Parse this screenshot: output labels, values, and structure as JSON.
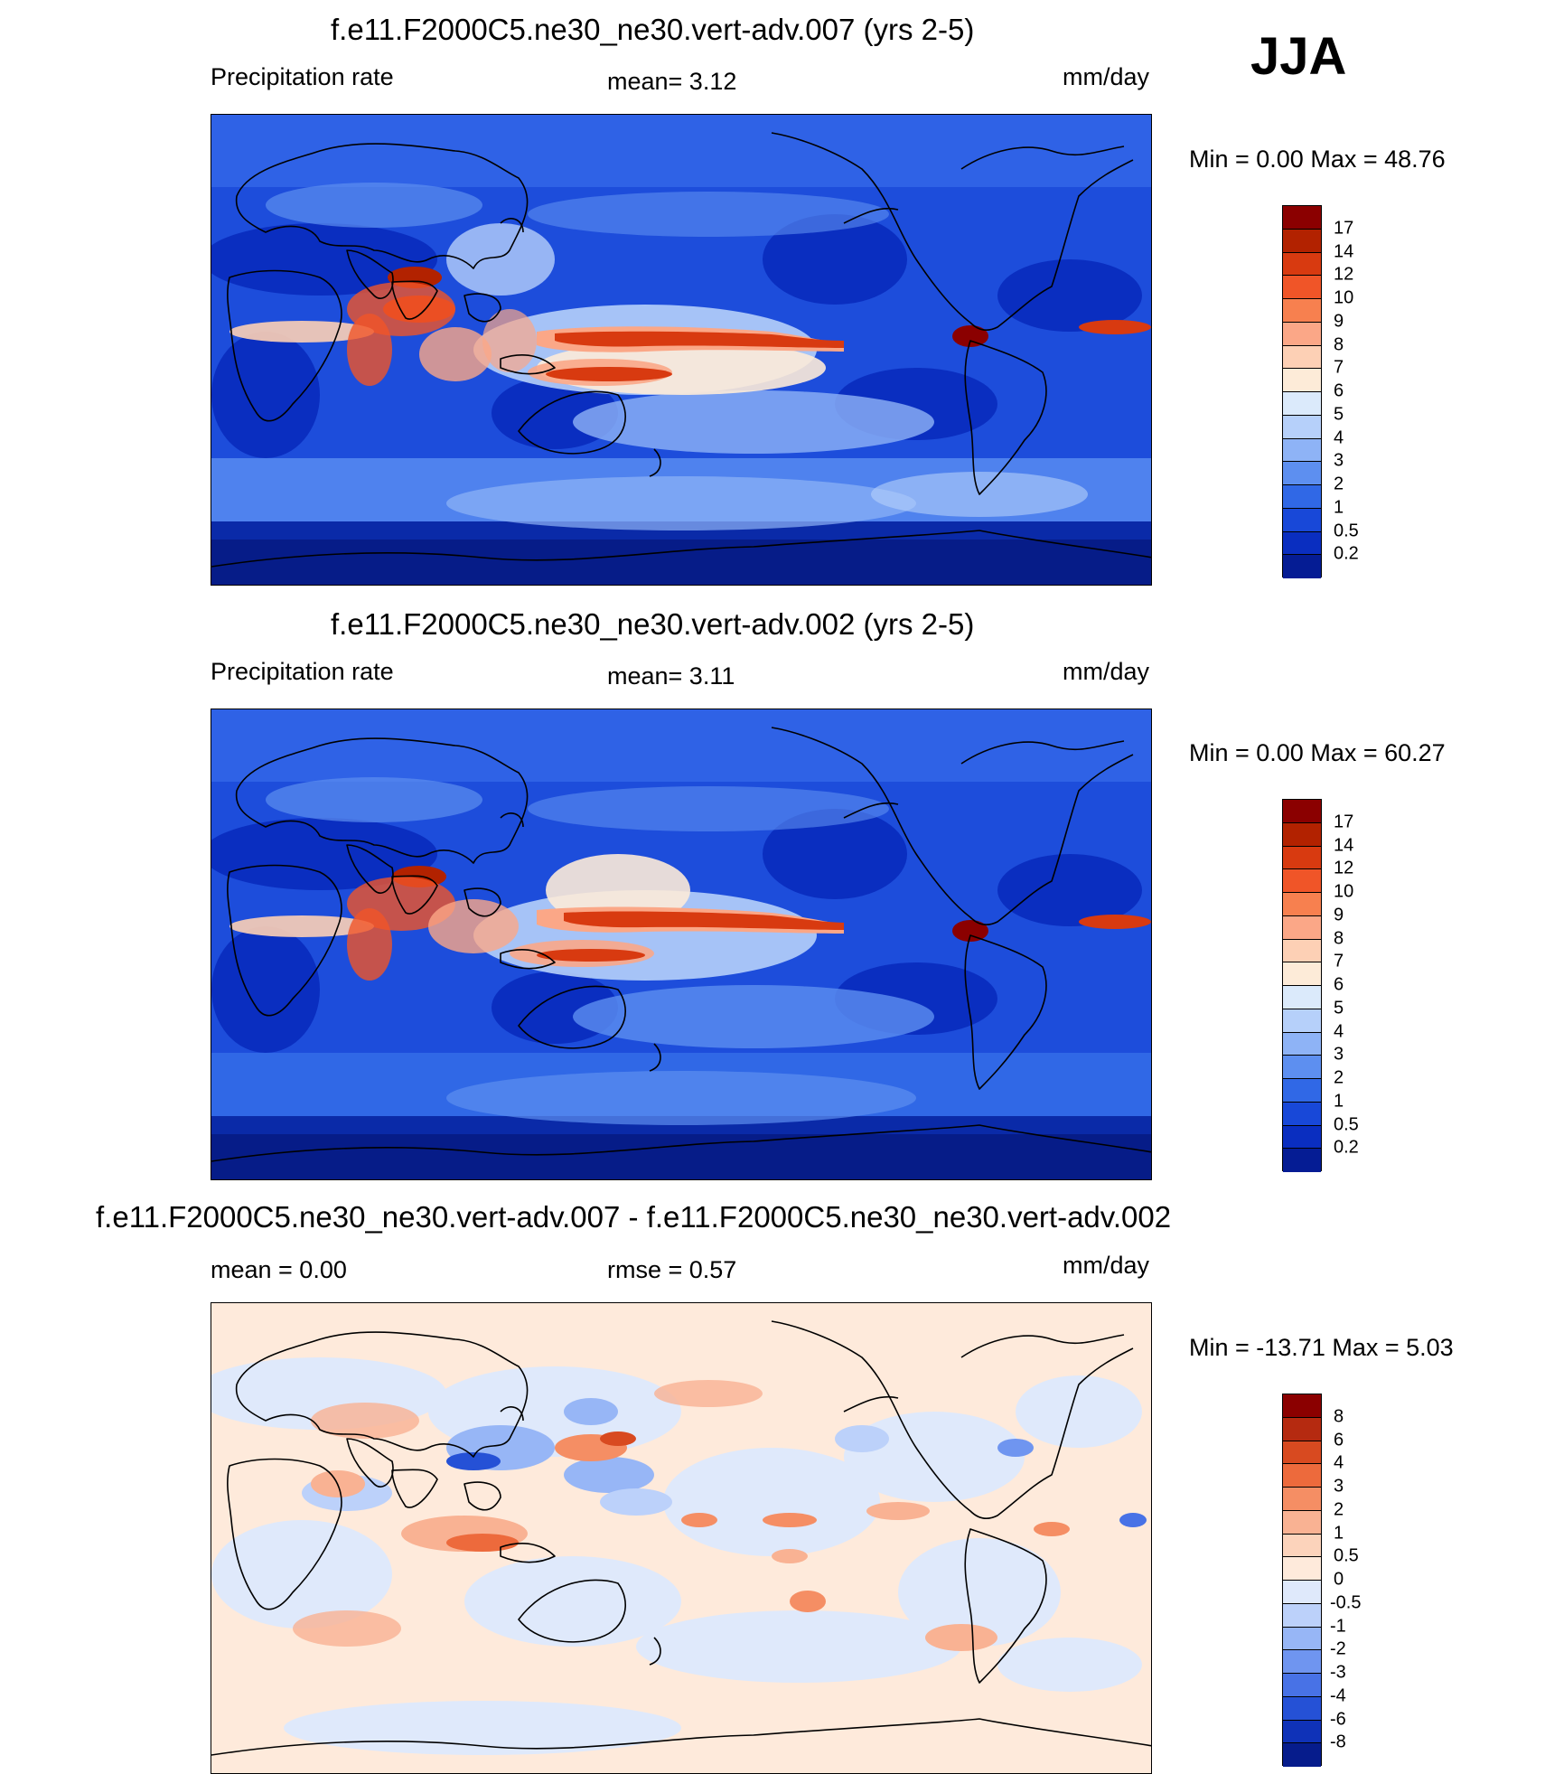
{
  "season": "JJA",
  "panels": [
    {
      "title": "f.e11.F2000C5.ne30_ne30.vert-adv.007 (yrs 2-5)",
      "left_label": "Precipitation rate",
      "center_label": "mean=   3.12",
      "units": "mm/day",
      "minmax": "Min =    0.00 Max =  48.76",
      "colorbar": {
        "labels": [
          "17",
          "14",
          "12",
          "10",
          "9",
          "8",
          "7",
          "6",
          "5",
          "4",
          "3",
          "2",
          "1",
          "0.5",
          "0.2"
        ],
        "colors": [
          "#8b0000",
          "#b22200",
          "#d83a10",
          "#f05528",
          "#f7804f",
          "#fba787",
          "#fdd0b5",
          "#fdebd8",
          "#dbeafb",
          "#b6d0fa",
          "#8eb3f6",
          "#5d8ff0",
          "#3068e6",
          "#1848d8",
          "#0a2ec0",
          "#051c94"
        ]
      }
    },
    {
      "title": "f.e11.F2000C5.ne30_ne30.vert-adv.002 (yrs 2-5)",
      "left_label": "Precipitation rate",
      "center_label": "mean=   3.11",
      "units": "mm/day",
      "minmax": "Min =    0.00 Max =  60.27",
      "colorbar": {
        "labels": [
          "17",
          "14",
          "12",
          "10",
          "9",
          "8",
          "7",
          "6",
          "5",
          "4",
          "3",
          "2",
          "1",
          "0.5",
          "0.2"
        ],
        "colors": [
          "#8b0000",
          "#b22200",
          "#d83a10",
          "#f05528",
          "#f7804f",
          "#fba787",
          "#fdd0b5",
          "#fdebd8",
          "#dbeafb",
          "#b6d0fa",
          "#8eb3f6",
          "#5d8ff0",
          "#3068e6",
          "#1848d8",
          "#0a2ec0",
          "#051c94"
        ]
      }
    },
    {
      "title": "f.e11.F2000C5.ne30_ne30.vert-adv.007 - f.e11.F2000C5.ne30_ne30.vert-adv.002",
      "left_label": "mean =    0.00",
      "center_label": "rmse =    0.57",
      "units": "mm/day",
      "minmax": "Min = -13.71 Max =    5.03",
      "colorbar": {
        "labels": [
          "8",
          "6",
          "4",
          "3",
          "2",
          "1",
          "0.5",
          "0",
          "-0.5",
          "-1",
          "-2",
          "-3",
          "-4",
          "-6",
          "-8"
        ],
        "colors": [
          "#8b0000",
          "#b52a10",
          "#d84a20",
          "#ed6a3c",
          "#f58e64",
          "#f9b293",
          "#fcd3bb",
          "#feeadb",
          "#dfe9fb",
          "#bcd1fa",
          "#97b6f6",
          "#6f95f0",
          "#4872e6",
          "#2551d6",
          "#0f32b8",
          "#061c8c"
        ]
      }
    }
  ]
}
